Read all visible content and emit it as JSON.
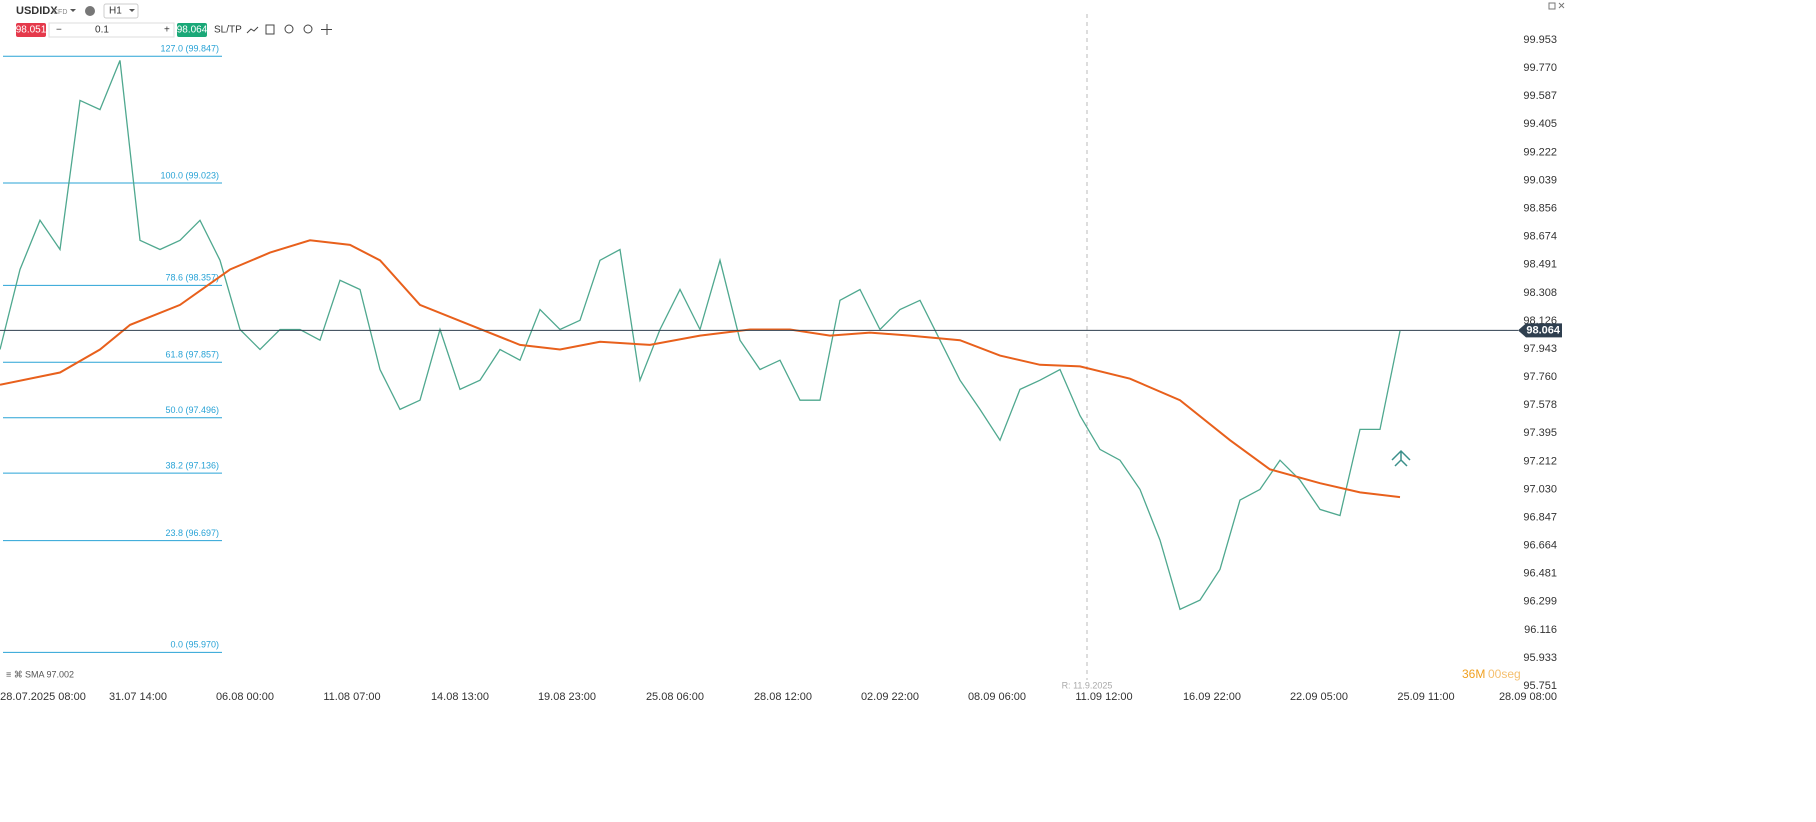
{
  "toolbar": {
    "symbol": "USDIDX",
    "instrument": "CFD",
    "timeframe": "H1",
    "sell_price": "98.051",
    "volume": "0.1",
    "buy_price": "98.064",
    "sltp": "SL/TP"
  },
  "indicator_label": "SMA 97.002",
  "timer": {
    "minutes": "36M",
    "seconds": "00seg"
  },
  "session_marker": "R: 11.9.2025",
  "chart_data": {
    "type": "line",
    "xlim": [
      0,
      77
    ],
    "xticks": [
      {
        "value": 2.15,
        "label": "28.07.2025 08:00"
      },
      {
        "value": 6.9,
        "label": "31.07 14:00"
      },
      {
        "value": 12.25,
        "label": "06.08 00:00"
      },
      {
        "value": 17.6,
        "label": "11.08 07:00"
      },
      {
        "value": 23,
        "label": "14.08 13:00"
      },
      {
        "value": 28.35,
        "label": "19.08 23:00"
      },
      {
        "value": 33.75,
        "label": "25.08 06:00"
      },
      {
        "value": 39.15,
        "label": "28.08 12:00"
      },
      {
        "value": 44.5,
        "label": "02.09 22:00"
      },
      {
        "value": 49.85,
        "label": "08.09 06:00"
      },
      {
        "value": 55.2,
        "label": "11.09 12:00"
      },
      {
        "value": 60.6,
        "label": "16.09 22:00"
      },
      {
        "value": 65.95,
        "label": "22.09 05:00"
      },
      {
        "value": 71.3,
        "label": "25.09 11:00"
      },
      {
        "value": 76.4,
        "label": "28.09 08:00"
      }
    ],
    "ylim": [
      95.751,
      99.953
    ],
    "yticks": [
      99.953,
      {
        "value": 99.77,
        "label": "99.770"
      },
      99.587,
      99.405,
      99.222,
      99.039,
      98.856,
      98.674,
      98.491,
      98.308,
      98.126,
      97.943,
      {
        "value": 97.76,
        "label": "97.760"
      },
      97.578,
      97.395,
      97.212,
      {
        "value": 97.03,
        "label": "97.030"
      },
      96.847,
      96.664,
      96.481,
      96.299,
      96.116,
      95.933,
      95.751
    ],
    "grid": false,
    "last_price": 98.064,
    "fib_levels": [
      {
        "label": "127.0 (99.847)",
        "value": 99.847
      },
      {
        "label": "100.0 (99.023)",
        "value": 99.023
      },
      {
        "label": "78.6 (98.357)",
        "value": 98.357
      },
      {
        "label": "61.8 (97.857)",
        "value": 97.857
      },
      {
        "label": "50.0 (97.496)",
        "value": 97.496
      },
      {
        "label": "38.2 (97.136)",
        "value": 97.136
      },
      {
        "label": "23.8 (96.697)",
        "value": 96.697
      },
      {
        "label": "0.0 (95.970)",
        "value": 95.97
      }
    ],
    "series": [
      {
        "name": "USDIDX",
        "color": "#4fa88f",
        "x": [
          0,
          1,
          2,
          3,
          4,
          5,
          6,
          7,
          8,
          9,
          10,
          11,
          12,
          13,
          14,
          15,
          16,
          17,
          18,
          19,
          20,
          21,
          22,
          23,
          24,
          25,
          26,
          27,
          28,
          29,
          30,
          31,
          32,
          33,
          34,
          35,
          36,
          37,
          38,
          39,
          40,
          41,
          42,
          43,
          44,
          45,
          46,
          47,
          48,
          49,
          50,
          51,
          52,
          53,
          54,
          55,
          56,
          57,
          58,
          59,
          60,
          61,
          62,
          63,
          64,
          65,
          66,
          67,
          68,
          69,
          70
        ],
        "values": [
          97.94,
          98.46,
          98.78,
          98.59,
          99.56,
          99.5,
          99.82,
          98.65,
          98.59,
          98.65,
          98.78,
          98.52,
          98.07,
          97.94,
          98.07,
          98.07,
          98,
          98.39,
          98.33,
          97.81,
          97.55,
          97.61,
          98.07,
          97.68,
          97.74,
          97.94,
          97.87,
          98.2,
          98.07,
          98.13,
          98.52,
          98.59,
          97.74,
          98.07,
          98.33,
          98.07,
          98.52,
          98,
          97.81,
          97.87,
          97.61,
          97.61,
          98.26,
          98.33,
          98.07,
          98.2,
          98.26,
          98,
          97.74,
          97.55,
          97.35,
          97.68,
          97.74,
          97.81,
          97.51,
          97.29,
          97.22,
          97.03,
          96.7,
          96.25,
          96.31,
          96.51,
          96.96,
          97.03,
          97.22,
          97.09,
          96.9,
          96.86,
          97.42,
          97.42,
          98.06
        ]
      },
      {
        "name": "SMA",
        "color": "#e8601c",
        "x": [
          0,
          3,
          5,
          6.5,
          9,
          11.5,
          13.5,
          15.5,
          17.5,
          19,
          21,
          23.5,
          26,
          28,
          30,
          32.5,
          35,
          37.5,
          39.5,
          41.5,
          43.5,
          45.5,
          48,
          50,
          52,
          54,
          56.5,
          59,
          61.5,
          63.5,
          66,
          68,
          70
        ],
        "values": [
          97.71,
          97.79,
          97.94,
          98.1,
          98.23,
          98.46,
          98.57,
          98.65,
          98.62,
          98.52,
          98.23,
          98.1,
          97.97,
          97.94,
          97.99,
          97.97,
          98.03,
          98.07,
          98.07,
          98.03,
          98.05,
          98.03,
          98,
          97.9,
          97.84,
          97.83,
          97.75,
          97.61,
          97.35,
          97.16,
          97.07,
          97.01,
          96.98
        ]
      }
    ]
  }
}
